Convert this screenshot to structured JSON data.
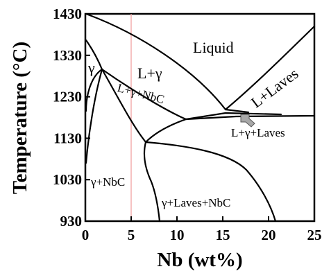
{
  "axes": {
    "xlabel": "Nb (wt%)",
    "ylabel": "Temperature (°C)",
    "x_ticks": [
      "0",
      "5",
      "10",
      "15",
      "20",
      "25"
    ],
    "y_ticks": [
      "930",
      "1030",
      "1130",
      "1230",
      "1330",
      "1430"
    ]
  },
  "regions": {
    "liquid": "Liquid",
    "l_gamma": "L+γ",
    "l_laves": "L+Laves",
    "gamma": "γ",
    "l_gamma_nbc": "L+γ+NbC",
    "l_gamma_laves": "L+γ+Laves",
    "gamma_nbc": "γ+NbC",
    "gamma_laves_nbc": "γ+Laves+NbC"
  },
  "colors": {
    "line": "#000000",
    "marker_line": "#f0a0a0",
    "arrow_fill": "#a8a8a8"
  },
  "marker": {
    "composition_wt_pct": 5
  }
}
